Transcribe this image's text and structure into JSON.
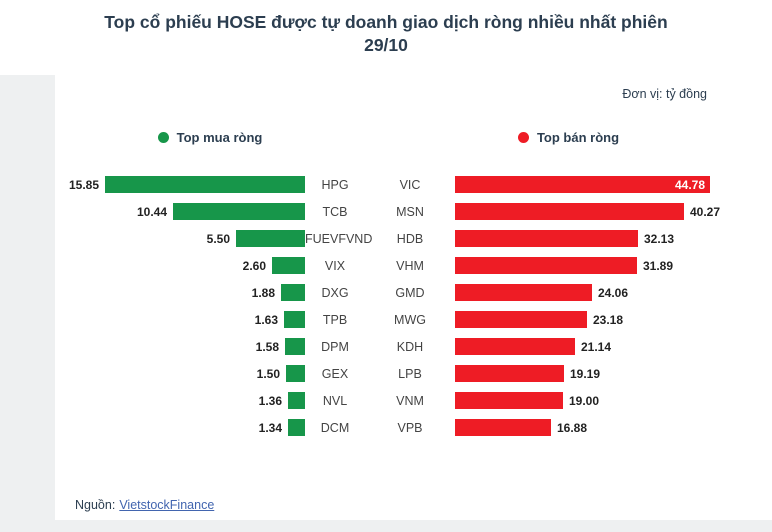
{
  "header": {
    "title_line1": "Top cổ phiếu HOSE được tự doanh giao dịch ròng nhiều nhất phiên",
    "title_line2": "29/10",
    "unit_label": "Đơn vị: tỷ đồng"
  },
  "footer": {
    "source_prefix": "Nguồn:",
    "source_link": "VietstockFinance"
  },
  "colors": {
    "buy_green": "#17964a",
    "sell_red": "#ee1c25",
    "title_navy": "#2c3e50",
    "link_blue": "#4265af"
  },
  "chart_data": {
    "type": "bar",
    "orientation": "horizontal",
    "layout": "tornado",
    "title": "Top cổ phiếu HOSE được tự doanh giao dịch ròng nhiều nhất phiên 29/10",
    "unit": "tỷ đồng",
    "legend_position": "top",
    "value_format": "2-decimals",
    "series": [
      {
        "name": "Top mua ròng",
        "color": "#17964a",
        "data": [
          {
            "ticker": "HPG",
            "value": 15.85
          },
          {
            "ticker": "TCB",
            "value": 10.44
          },
          {
            "ticker": "FUEVFVND",
            "value": 5.5
          },
          {
            "ticker": "VIX",
            "value": 2.6
          },
          {
            "ticker": "DXG",
            "value": 1.88
          },
          {
            "ticker": "TPB",
            "value": 1.63
          },
          {
            "ticker": "DPM",
            "value": 1.58
          },
          {
            "ticker": "GEX",
            "value": 1.5
          },
          {
            "ticker": "NVL",
            "value": 1.36
          },
          {
            "ticker": "DCM",
            "value": 1.34
          }
        ]
      },
      {
        "name": "Top bán ròng",
        "color": "#ee1c25",
        "data": [
          {
            "ticker": "VIC",
            "value": 44.78
          },
          {
            "ticker": "MSN",
            "value": 40.27
          },
          {
            "ticker": "HDB",
            "value": 32.13
          },
          {
            "ticker": "VHM",
            "value": 31.89
          },
          {
            "ticker": "GMD",
            "value": 24.06
          },
          {
            "ticker": "MWG",
            "value": 23.18
          },
          {
            "ticker": "KDH",
            "value": 21.14
          },
          {
            "ticker": "LPB",
            "value": 19.19
          },
          {
            "ticker": "VNM",
            "value": 19.0
          },
          {
            "ticker": "VPB",
            "value": 16.88
          }
        ]
      }
    ]
  }
}
